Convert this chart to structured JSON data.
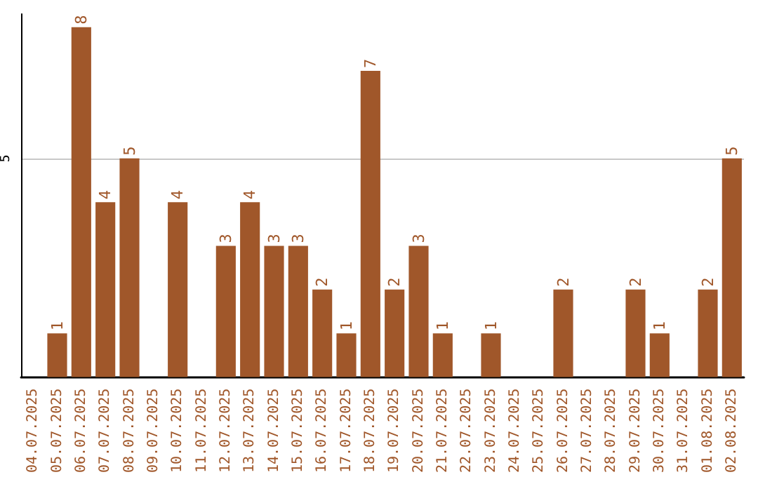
{
  "chart_data": {
    "type": "bar",
    "categories": [
      "04.07.2025",
      "05.07.2025",
      "06.07.2025",
      "07.07.2025",
      "08.07.2025",
      "09.07.2025",
      "10.07.2025",
      "11.07.2025",
      "12.07.2025",
      "13.07.2025",
      "14.07.2025",
      "15.07.2025",
      "16.07.2025",
      "17.07.2025",
      "18.07.2025",
      "19.07.2025",
      "20.07.2025",
      "21.07.2025",
      "22.07.2025",
      "23.07.2025",
      "24.07.2025",
      "25.07.2025",
      "26.07.2025",
      "27.07.2025",
      "28.07.2025",
      "29.07.2025",
      "30.07.2025",
      "31.07.2025",
      "01.08.2025",
      "02.08.2025"
    ],
    "values": [
      null,
      1,
      8,
      4,
      5,
      null,
      4,
      null,
      3,
      4,
      3,
      3,
      2,
      1,
      7,
      2,
      3,
      1,
      null,
      1,
      null,
      null,
      2,
      null,
      null,
      2,
      1,
      null,
      2,
      5
    ],
    "color": "#a0572a",
    "ylim": [
      0,
      8.3
    ],
    "yticks": [
      5
    ],
    "grid": "y",
    "data_labels": true
  }
}
